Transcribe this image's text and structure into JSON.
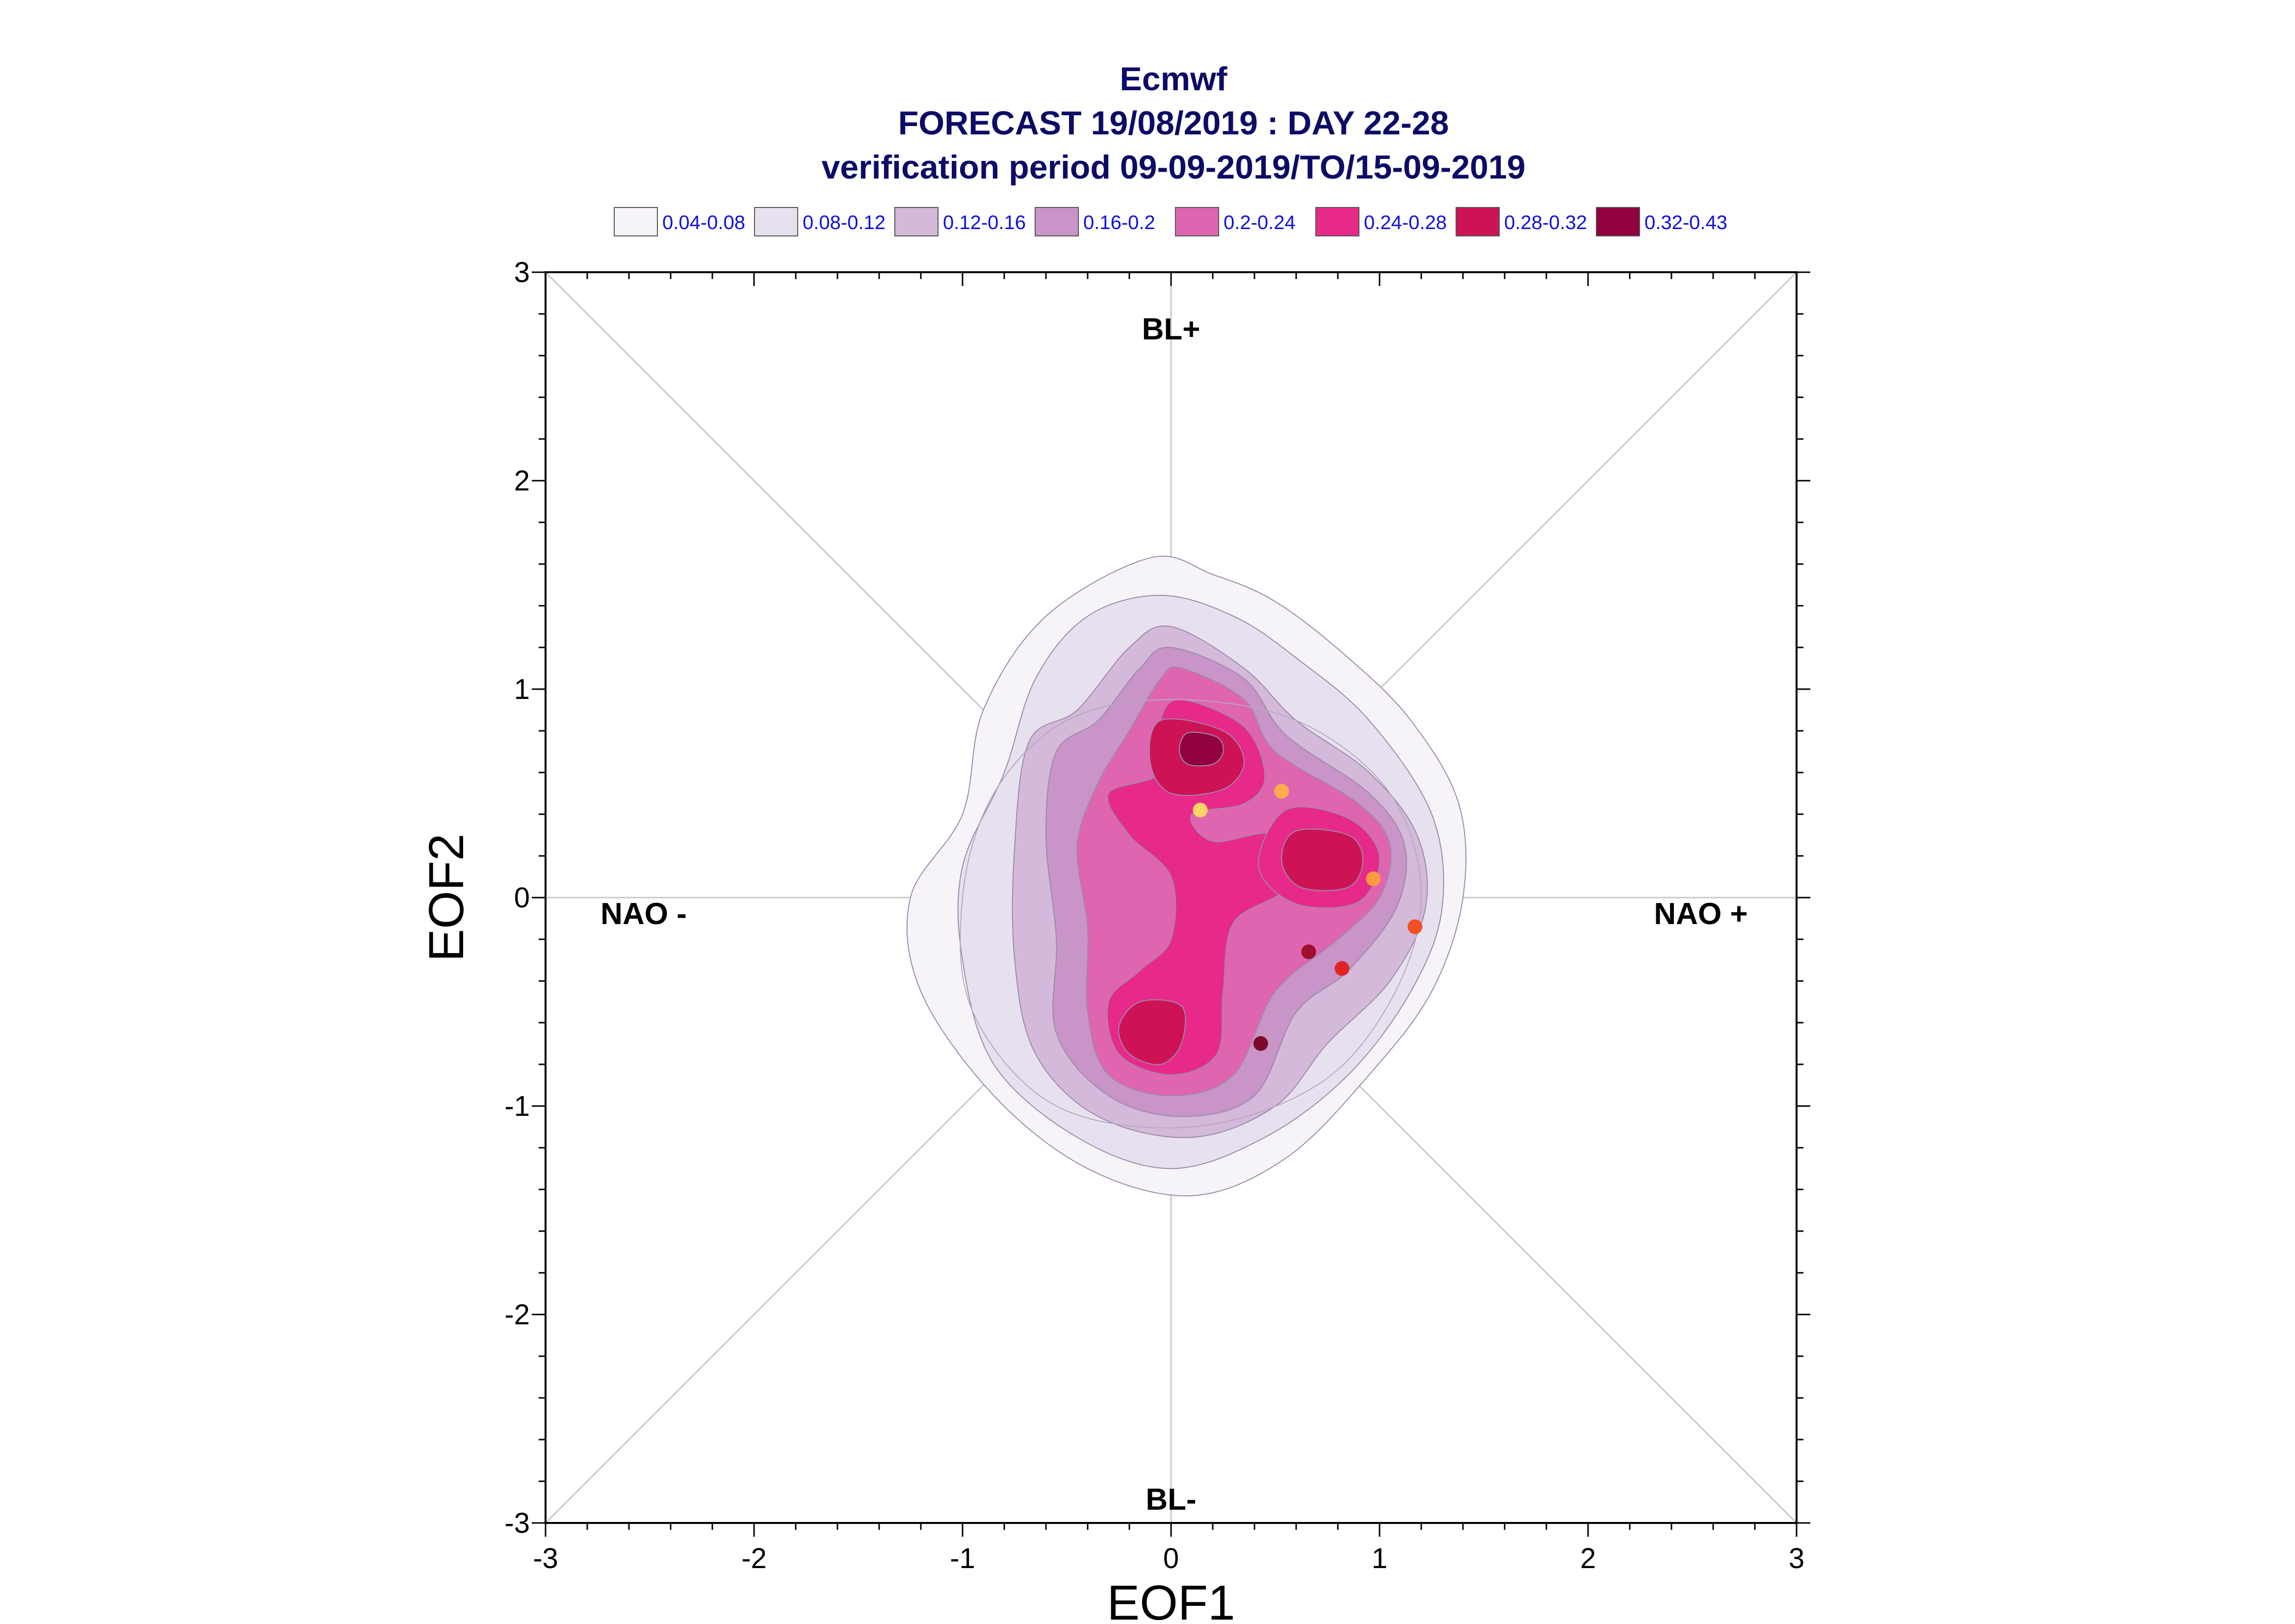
{
  "chart_data": {
    "type": "scatter",
    "title": [
      "Ecmwf",
      "FORECAST 19/08/2019 : DAY 22-28",
      "verification period 09-09-2019/TO/15-09-2019"
    ],
    "xlabel": "EOF1",
    "ylabel": "EOF2",
    "xlim": [
      -3,
      3
    ],
    "ylim": [
      -3,
      3
    ],
    "x_ticks": [
      "-3",
      "-2",
      "-1",
      "0",
      "1",
      "2",
      "3"
    ],
    "y_ticks": [
      "-3",
      "-2",
      "-1",
      "0",
      "1",
      "2",
      "3"
    ],
    "grid": false,
    "legend_position": "top",
    "regime_labels": [
      {
        "text": "BL+",
        "x": 0,
        "y": 2.72
      },
      {
        "text": "BL-",
        "x": 0,
        "y": -2.88
      },
      {
        "text": "NAO -",
        "x": -2.53,
        "y": -0.08
      },
      {
        "text": "NAO +",
        "x": 2.54,
        "y": -0.08
      }
    ],
    "density_legend": [
      {
        "label": "0.04-0.08",
        "color": "#f7f4f9"
      },
      {
        "label": "0.08-0.12",
        "color": "#e7e1ef"
      },
      {
        "label": "0.12-0.16",
        "color": "#d4b9da"
      },
      {
        "label": "0.16-0.2",
        "color": "#c994c7"
      },
      {
        "label": "0.2-0.24",
        "color": "#df65b0"
      },
      {
        "label": "0.24-0.28",
        "color": "#e7298a"
      },
      {
        "label": "0.28-0.32",
        "color": "#ce1256"
      },
      {
        "label": "0.32-0.43",
        "color": "#91003f"
      }
    ],
    "density_levels": [
      [
        [
          -0.1,
          1.63
        ],
        [
          0.2,
          1.55
        ],
        [
          0.5,
          1.42
        ],
        [
          0.85,
          1.15
        ],
        [
          1.15,
          0.85
        ],
        [
          1.38,
          0.45
        ],
        [
          1.4,
          0.0
        ],
        [
          1.25,
          -0.45
        ],
        [
          0.95,
          -0.85
        ],
        [
          0.55,
          -1.25
        ],
        [
          0.1,
          -1.43
        ],
        [
          -0.4,
          -1.3
        ],
        [
          -0.85,
          -0.95
        ],
        [
          -1.2,
          -0.45
        ],
        [
          -1.25,
          0.0
        ],
        [
          -1.0,
          0.4
        ],
        [
          -0.9,
          0.9
        ],
        [
          -0.6,
          1.35
        ]
      ],
      [
        [
          -0.05,
          1.45
        ],
        [
          0.3,
          1.35
        ],
        [
          0.6,
          1.15
        ],
        [
          0.95,
          0.85
        ],
        [
          1.25,
          0.4
        ],
        [
          1.3,
          -0.05
        ],
        [
          1.15,
          -0.45
        ],
        [
          0.85,
          -0.85
        ],
        [
          0.45,
          -1.15
        ],
        [
          0.0,
          -1.3
        ],
        [
          -0.45,
          -1.15
        ],
        [
          -0.85,
          -0.8
        ],
        [
          -1.0,
          -0.3
        ],
        [
          -1.0,
          0.15
        ],
        [
          -0.8,
          0.6
        ],
        [
          -0.65,
          1.05
        ],
        [
          -0.4,
          1.35
        ]
      ],
      [
        [
          0.0,
          1.3
        ],
        [
          0.35,
          1.1
        ],
        [
          0.6,
          0.85
        ],
        [
          0.95,
          0.6
        ],
        [
          1.18,
          0.3
        ],
        [
          1.22,
          -0.05
        ],
        [
          1.05,
          -0.4
        ],
        [
          0.75,
          -0.7
        ],
        [
          0.5,
          -1.0
        ],
        [
          0.1,
          -1.15
        ],
        [
          -0.35,
          -1.05
        ],
        [
          -0.65,
          -0.75
        ],
        [
          -0.75,
          -0.3
        ],
        [
          -0.75,
          0.25
        ],
        [
          -0.68,
          0.75
        ],
        [
          -0.45,
          0.9
        ],
        [
          -0.2,
          1.2
        ]
      ],
      [
        [
          0.0,
          1.2
        ],
        [
          0.35,
          1.05
        ],
        [
          0.55,
          0.78
        ],
        [
          0.95,
          0.5
        ],
        [
          1.12,
          0.25
        ],
        [
          1.08,
          -0.05
        ],
        [
          0.85,
          -0.35
        ],
        [
          0.6,
          -0.55
        ],
        [
          0.4,
          -0.95
        ],
        [
          0.05,
          -1.05
        ],
        [
          -0.3,
          -0.95
        ],
        [
          -0.55,
          -0.65
        ],
        [
          -0.55,
          -0.2
        ],
        [
          -0.6,
          0.3
        ],
        [
          -0.55,
          0.7
        ],
        [
          -0.35,
          0.85
        ],
        [
          -0.15,
          1.1
        ]
      ],
      [
        [
          0.05,
          1.1
        ],
        [
          0.35,
          0.95
        ],
        [
          0.5,
          0.7
        ],
        [
          0.9,
          0.45
        ],
        [
          1.05,
          0.25
        ],
        [
          1.0,
          0.0
        ],
        [
          0.8,
          -0.2
        ],
        [
          0.5,
          -0.45
        ],
        [
          0.3,
          -0.85
        ],
        [
          0.0,
          -0.95
        ],
        [
          -0.3,
          -0.85
        ],
        [
          -0.4,
          -0.55
        ],
        [
          -0.4,
          -0.15
        ],
        [
          -0.45,
          0.25
        ],
        [
          -0.35,
          0.55
        ],
        [
          -0.2,
          0.8
        ],
        [
          -0.05,
          1.05
        ]
      ],
      [
        [
          0.05,
          0.95
        ],
        [
          0.35,
          0.82
        ],
        [
          0.45,
          0.58
        ],
        [
          0.35,
          0.45
        ],
        [
          0.1,
          0.4
        ],
        [
          0.2,
          0.27
        ],
        [
          0.5,
          0.3
        ],
        [
          0.55,
          0.05
        ],
        [
          0.3,
          -0.12
        ],
        [
          0.25,
          -0.45
        ],
        [
          0.22,
          -0.75
        ],
        [
          0.0,
          -0.85
        ],
        [
          -0.25,
          -0.75
        ],
        [
          -0.3,
          -0.5
        ],
        [
          -0.15,
          -0.35
        ],
        [
          0.0,
          -0.2
        ],
        [
          0.0,
          0.1
        ],
        [
          -0.2,
          0.3
        ],
        [
          -0.3,
          0.5
        ],
        [
          -0.05,
          0.6
        ],
        [
          -0.05,
          0.85
        ]
      ]
    ],
    "density_blobs": [
      {
        "level": 5,
        "points": [
          [
            0.55,
            0.42
          ],
          [
            0.85,
            0.38
          ],
          [
            1.0,
            0.2
          ],
          [
            0.9,
            -0.02
          ],
          [
            0.6,
            -0.03
          ],
          [
            0.42,
            0.15
          ]
        ]
      },
      {
        "level": 6,
        "points": [
          [
            -0.05,
            0.85
          ],
          [
            0.25,
            0.8
          ],
          [
            0.35,
            0.65
          ],
          [
            0.25,
            0.52
          ],
          [
            0.0,
            0.5
          ],
          [
            -0.1,
            0.65
          ]
        ]
      },
      {
        "level": 6,
        "points": [
          [
            0.6,
            0.32
          ],
          [
            0.85,
            0.3
          ],
          [
            0.92,
            0.18
          ],
          [
            0.85,
            0.05
          ],
          [
            0.62,
            0.05
          ],
          [
            0.53,
            0.18
          ]
        ]
      },
      {
        "level": 6,
        "points": [
          [
            -0.15,
            -0.5
          ],
          [
            0.05,
            -0.52
          ],
          [
            0.05,
            -0.7
          ],
          [
            -0.05,
            -0.8
          ],
          [
            -0.2,
            -0.75
          ],
          [
            -0.25,
            -0.62
          ]
        ]
      },
      {
        "level": 7,
        "points": [
          [
            0.08,
            0.79
          ],
          [
            0.22,
            0.77
          ],
          [
            0.25,
            0.7
          ],
          [
            0.2,
            0.64
          ],
          [
            0.08,
            0.64
          ],
          [
            0.04,
            0.71
          ]
        ]
      }
    ],
    "extra_contours": [
      [
        [
          0.0,
          0.95
        ],
        [
          0.6,
          0.85
        ],
        [
          1.05,
          0.5
        ],
        [
          1.2,
          0.0
        ],
        [
          1.05,
          -0.5
        ],
        [
          0.7,
          -0.9
        ],
        [
          0.1,
          -1.1
        ],
        [
          -0.55,
          -1.0
        ],
        [
          -0.95,
          -0.55
        ],
        [
          -1.0,
          0.0
        ],
        [
          -0.85,
          0.5
        ],
        [
          -0.5,
          0.85
        ]
      ]
    ],
    "series": [
      {
        "x": [
          0.14,
          0.53,
          0.97,
          1.17,
          0.66,
          0.82,
          0.43
        ],
        "y": [
          0.42,
          0.51,
          0.09,
          -0.14,
          -0.26,
          -0.34,
          -0.7
        ],
        "colors": [
          "#ffd566",
          "#ffac4d",
          "#ff9a40",
          "#f24f24",
          "#a00f2c",
          "#e02424",
          "#7c0a2a"
        ]
      }
    ]
  }
}
